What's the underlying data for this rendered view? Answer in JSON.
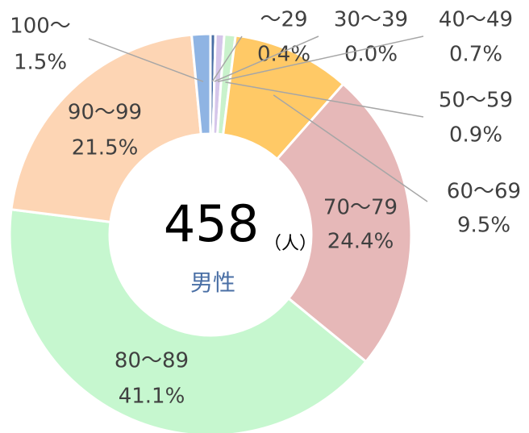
{
  "chart_data": {
    "type": "donut",
    "categories": [
      "〜29",
      "30〜39",
      "40〜49",
      "50〜59",
      "60〜69",
      "70〜79",
      "80〜89",
      "90〜99",
      "100〜"
    ],
    "values": [
      0.4,
      0.0,
      0.7,
      0.9,
      9.5,
      24.4,
      41.1,
      21.5,
      1.5
    ],
    "value_labels": [
      "0.4%",
      "0.0%",
      "0.7%",
      "0.9%",
      "9.5%",
      "24.4%",
      "41.1%",
      "21.5%",
      "1.5%"
    ],
    "colors": [
      "#4a6fa5",
      "#b4c7e7",
      "#d5c6ea",
      "#c9f2cc",
      "#ffc966",
      "#e6b8b8",
      "#c6f7cf",
      "#fdd5b4",
      "#8fb4e3"
    ],
    "center_value": "458",
    "center_unit": "（人）",
    "center_label": "男性"
  }
}
